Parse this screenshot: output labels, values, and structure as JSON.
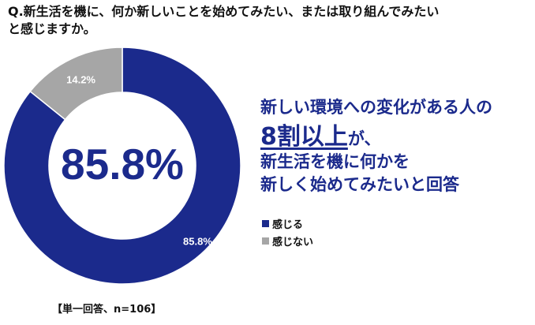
{
  "question": "Q.新生活を機に、何か新しいことを始めてみたい、または取り組んでみたいと感じますか。",
  "headline": {
    "line1": "新しい環境への変化がある人の",
    "emphasis": "8割以上",
    "after_emphasis": "が、",
    "line3": "新生活を機に何かを",
    "line4": "新しく始めてみたいと回答"
  },
  "note": "【単一回答、n=106】",
  "chart_data": {
    "type": "pie",
    "title": "",
    "center_label": "85.8%",
    "categories": [
      "感じる",
      "感じない"
    ],
    "values": [
      85.8,
      14.2
    ],
    "data_labels": [
      "85.8%",
      "14.2%"
    ],
    "colors": [
      "#1b2a8c",
      "#a6a6a6"
    ],
    "legend_position": "right"
  }
}
